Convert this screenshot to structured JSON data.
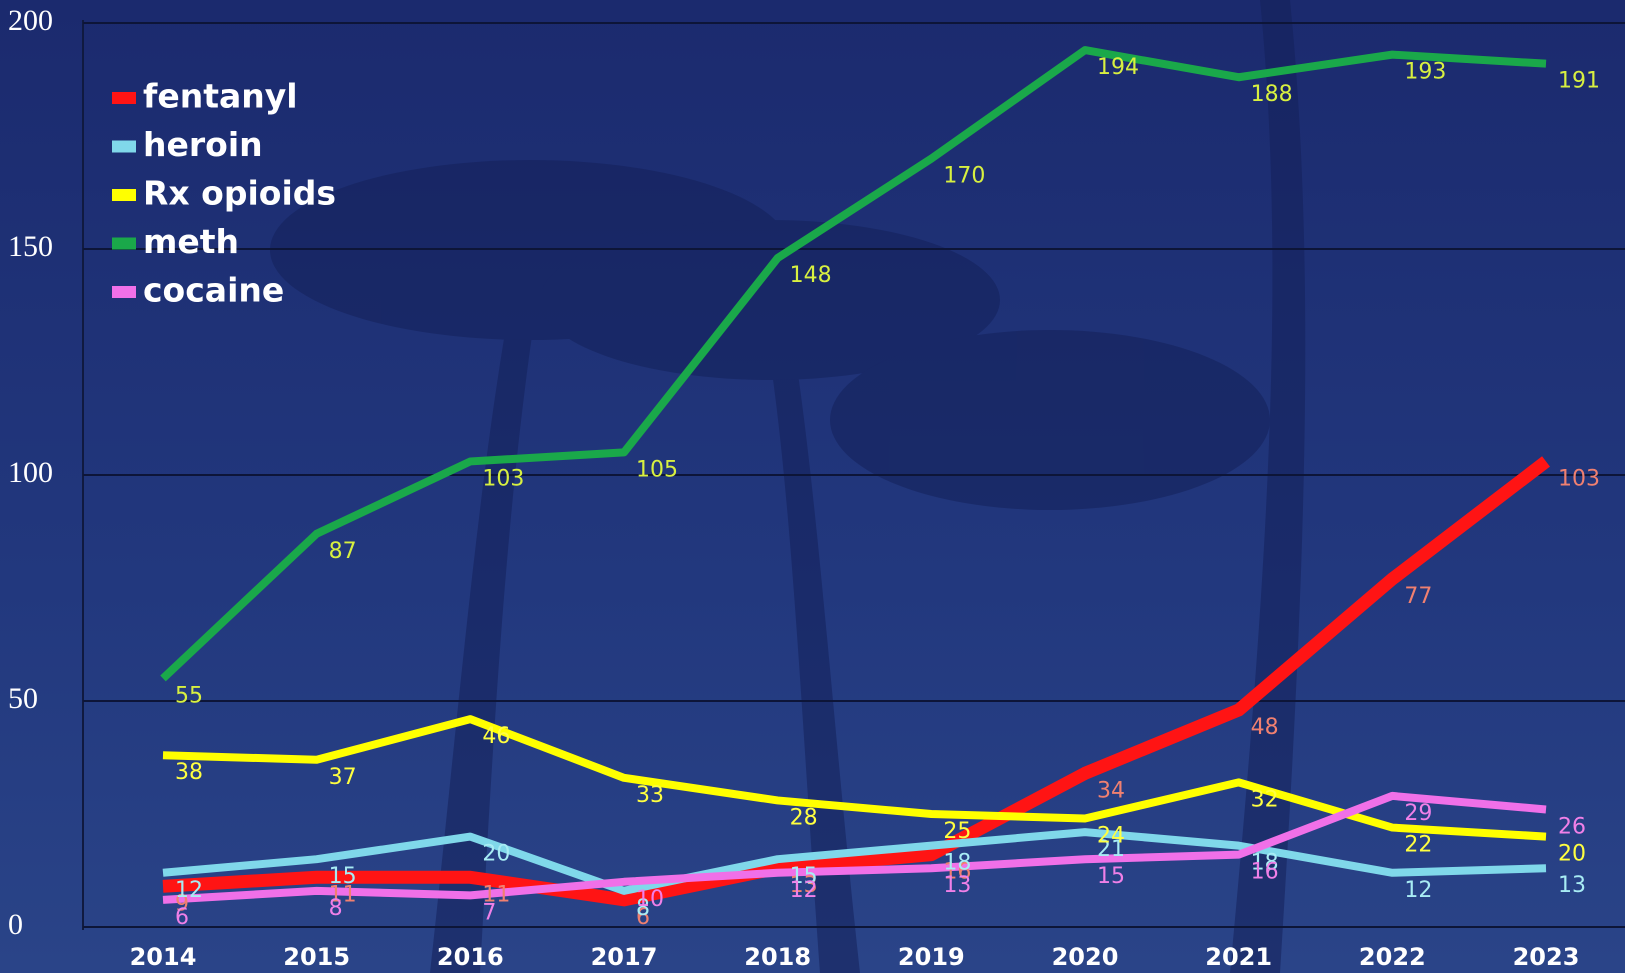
{
  "chart_data": {
    "type": "line",
    "categories": [
      "2014",
      "2015",
      "2016",
      "2017",
      "2018",
      "2019",
      "2020",
      "2021",
      "2022",
      "2023"
    ],
    "series": [
      {
        "name": "fentanyl",
        "color": "#ff1414",
        "values": [
          9,
          11,
          11,
          6,
          13,
          16,
          34,
          48,
          77,
          103
        ]
      },
      {
        "name": "heroin",
        "color": "#80d8ea",
        "values": [
          12,
          15,
          20,
          8,
          15,
          18,
          21,
          18,
          12,
          13
        ]
      },
      {
        "name": "Rx opioids",
        "color": "#ffff00",
        "values": [
          38,
          37,
          46,
          33,
          28,
          25,
          24,
          32,
          22,
          20
        ]
      },
      {
        "name": "meth",
        "color": "#1aa84a",
        "values": [
          55,
          87,
          103,
          105,
          148,
          170,
          194,
          188,
          193,
          191
        ]
      },
      {
        "name": "cocaine",
        "color": "#f070e8",
        "values": [
          6,
          8,
          7,
          10,
          12,
          13,
          15,
          16,
          29,
          26
        ]
      }
    ],
    "ylim": [
      0,
      200
    ],
    "yticks": [
      0,
      50,
      100,
      150,
      200
    ],
    "grid": true,
    "legend": "top-left"
  }
}
